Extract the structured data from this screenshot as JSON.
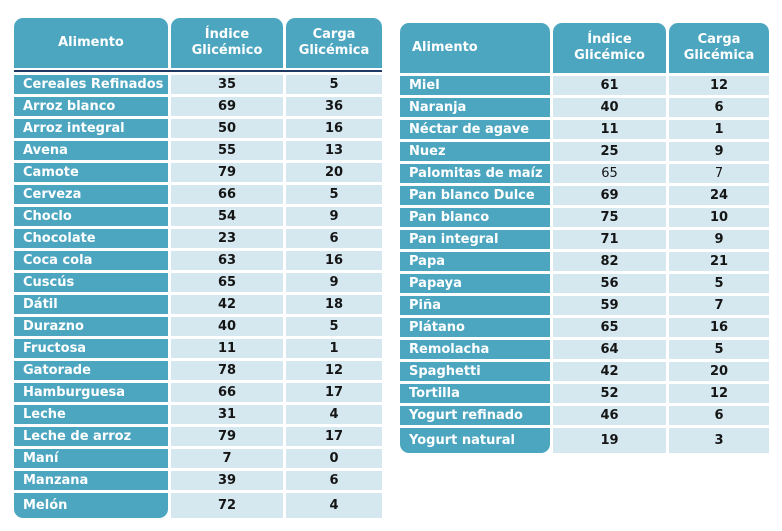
{
  "colors": {
    "teal": "#4DA6C0",
    "cell_bg": "#D5E8F0",
    "divider": "#1F3864",
    "header_text": "#FFFFFF",
    "number_text": "#151515"
  },
  "chart_data": [
    {
      "type": "table",
      "title": "",
      "columns": [
        "Alimento",
        "Índice Glicémico",
        "Carga Glicémica"
      ],
      "header_food_align": "center",
      "header_divider": true,
      "rows": [
        [
          "Cereales Refinados",
          35,
          5
        ],
        [
          "Arroz blanco",
          69,
          36
        ],
        [
          "Arroz integral",
          50,
          16
        ],
        [
          "Avena",
          55,
          13
        ],
        [
          "Camote",
          79,
          20
        ],
        [
          "Cerveza",
          66,
          5
        ],
        [
          "Choclo",
          54,
          9
        ],
        [
          "Chocolate",
          23,
          6
        ],
        [
          "Coca cola",
          63,
          16
        ],
        [
          "Cuscús",
          65,
          9
        ],
        [
          "Dátil",
          42,
          18
        ],
        [
          "Durazno",
          40,
          5
        ],
        [
          "Fructosa",
          11,
          1
        ],
        [
          "Gatorade",
          78,
          12
        ],
        [
          "Hamburguesa",
          66,
          17
        ],
        [
          "Leche",
          31,
          4
        ],
        [
          "Leche de arroz",
          79,
          17
        ],
        [
          "Maní",
          7,
          0
        ],
        [
          "Manzana",
          39,
          6
        ],
        [
          "Melón",
          72,
          4
        ]
      ],
      "regular_weight_rows": []
    },
    {
      "type": "table",
      "title": "",
      "columns": [
        "Alimento",
        "Índice Glicémico",
        "Carga Glicémica"
      ],
      "header_food_align": "left",
      "header_divider": false,
      "rows": [
        [
          "Miel",
          61,
          12
        ],
        [
          "Naranja",
          40,
          6
        ],
        [
          "Néctar de agave",
          11,
          1
        ],
        [
          "Nuez",
          25,
          9
        ],
        [
          "Palomitas de maíz",
          65,
          7
        ],
        [
          "Pan blanco Dulce",
          69,
          24
        ],
        [
          "Pan blanco",
          75,
          10
        ],
        [
          "Pan integral",
          71,
          9
        ],
        [
          "Papa",
          82,
          21
        ],
        [
          "Papaya",
          56,
          5
        ],
        [
          "Piña",
          59,
          7
        ],
        [
          "Plátano",
          65,
          16
        ],
        [
          "Remolacha",
          64,
          5
        ],
        [
          "Spaghetti",
          42,
          20
        ],
        [
          "Tortilla",
          52,
          12
        ],
        [
          "Yogurt refinado",
          46,
          6
        ],
        [
          "Yogurt natural",
          19,
          3
        ]
      ],
      "regular_weight_rows": [
        4
      ]
    }
  ]
}
